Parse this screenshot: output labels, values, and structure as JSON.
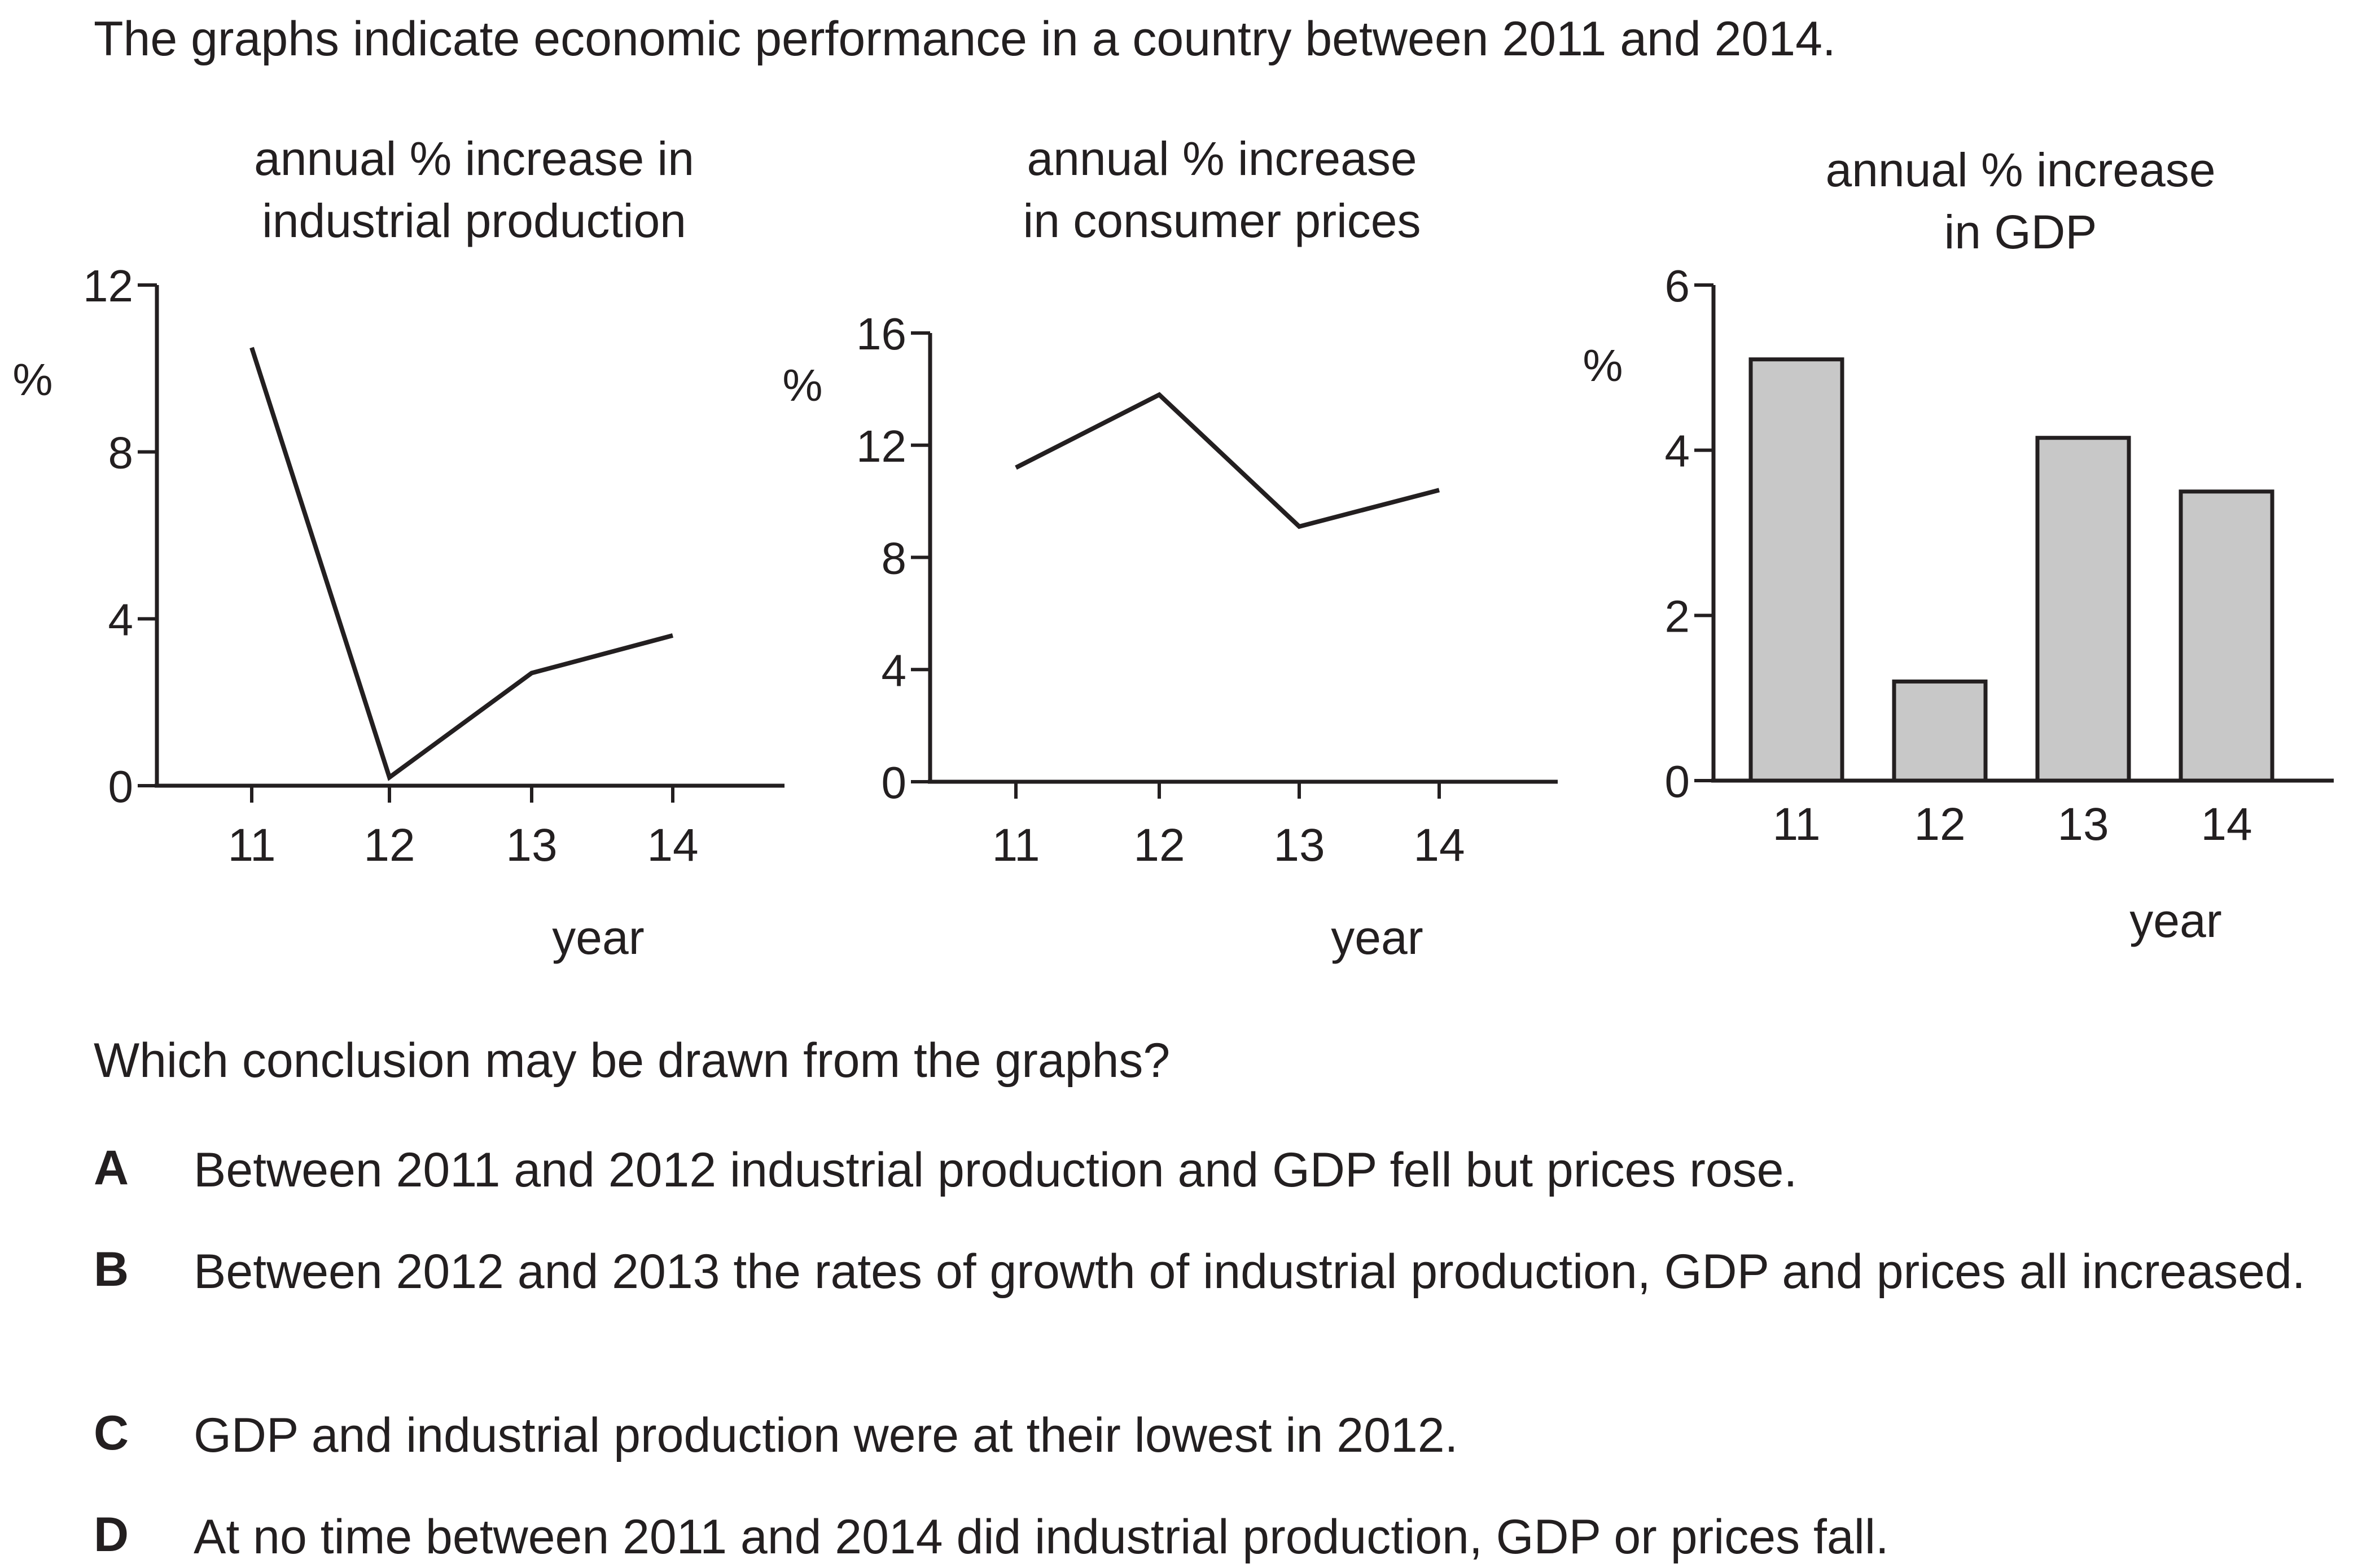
{
  "intro": "The graphs indicate economic performance in a country between 2011 and 2014.",
  "question": "Which conclusion may be drawn from the graphs?",
  "options": [
    {
      "letter": "A",
      "text": "Between 2011 and 2012 industrial production and GDP fell but prices rose."
    },
    {
      "letter": "B",
      "text": "Between 2012 and 2013 the rates of growth of industrial production, GDP and prices all increased."
    },
    {
      "letter": "C",
      "text": "GDP and industrial production were at their lowest in 2012."
    },
    {
      "letter": "D",
      "text": "At no time between 2011 and 2014 did industrial production, GDP or prices fall."
    }
  ],
  "colors": {
    "ink": "#231f20",
    "bar_fill": "#c8c8c8"
  },
  "chart_data": [
    {
      "type": "line",
      "title": [
        "annual % increase in",
        "industrial production"
      ],
      "ylabel": "%",
      "xlabel": "year",
      "categories": [
        "11",
        "12",
        "13",
        "14"
      ],
      "values": [
        10.5,
        0.2,
        2.7,
        3.6
      ],
      "ylim": [
        0,
        12
      ],
      "yticks": [
        "0",
        "4",
        "8",
        "12"
      ]
    },
    {
      "type": "line",
      "title": [
        "annual % increase",
        "in consumer prices"
      ],
      "ylabel": "%",
      "xlabel": "year",
      "categories": [
        "11",
        "12",
        "13",
        "14"
      ],
      "values": [
        11.2,
        13.8,
        9.1,
        10.4
      ],
      "ylim": [
        0,
        16
      ],
      "yticks": [
        "0",
        "4",
        "8",
        "12",
        "16"
      ]
    },
    {
      "type": "bar",
      "title": [
        "annual % increase",
        "in GDP"
      ],
      "ylabel": "%",
      "xlabel": "year",
      "categories": [
        "11",
        "12",
        "13",
        "14"
      ],
      "values": [
        5.1,
        1.2,
        4.15,
        3.5
      ],
      "ylim": [
        0,
        6
      ],
      "yticks": [
        "0",
        "2",
        "4",
        "6"
      ]
    }
  ]
}
